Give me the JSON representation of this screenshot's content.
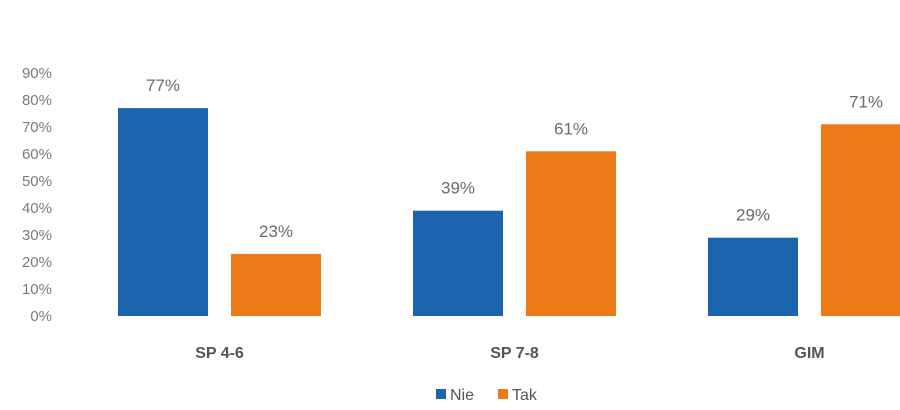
{
  "chart_data": {
    "type": "bar",
    "categories": [
      "SP 4-6",
      "SP 7-8",
      "GIM"
    ],
    "series": [
      {
        "name": "Nie",
        "values": [
          77,
          39,
          29
        ],
        "labels": [
          "77%",
          "39%",
          "29%"
        ],
        "color": "#1c64ad"
      },
      {
        "name": "Tak",
        "values": [
          23,
          61,
          71
        ],
        "labels": [
          "23%",
          "61%",
          "71%"
        ],
        "color": "#ec7a17"
      }
    ],
    "y_ticks": [
      "0%",
      "10%",
      "20%",
      "30%",
      "40%",
      "50%",
      "60%",
      "70%",
      "80%",
      "90%"
    ],
    "ylim": [
      0,
      90
    ],
    "grid": false,
    "legend_position": "bottom-center"
  }
}
